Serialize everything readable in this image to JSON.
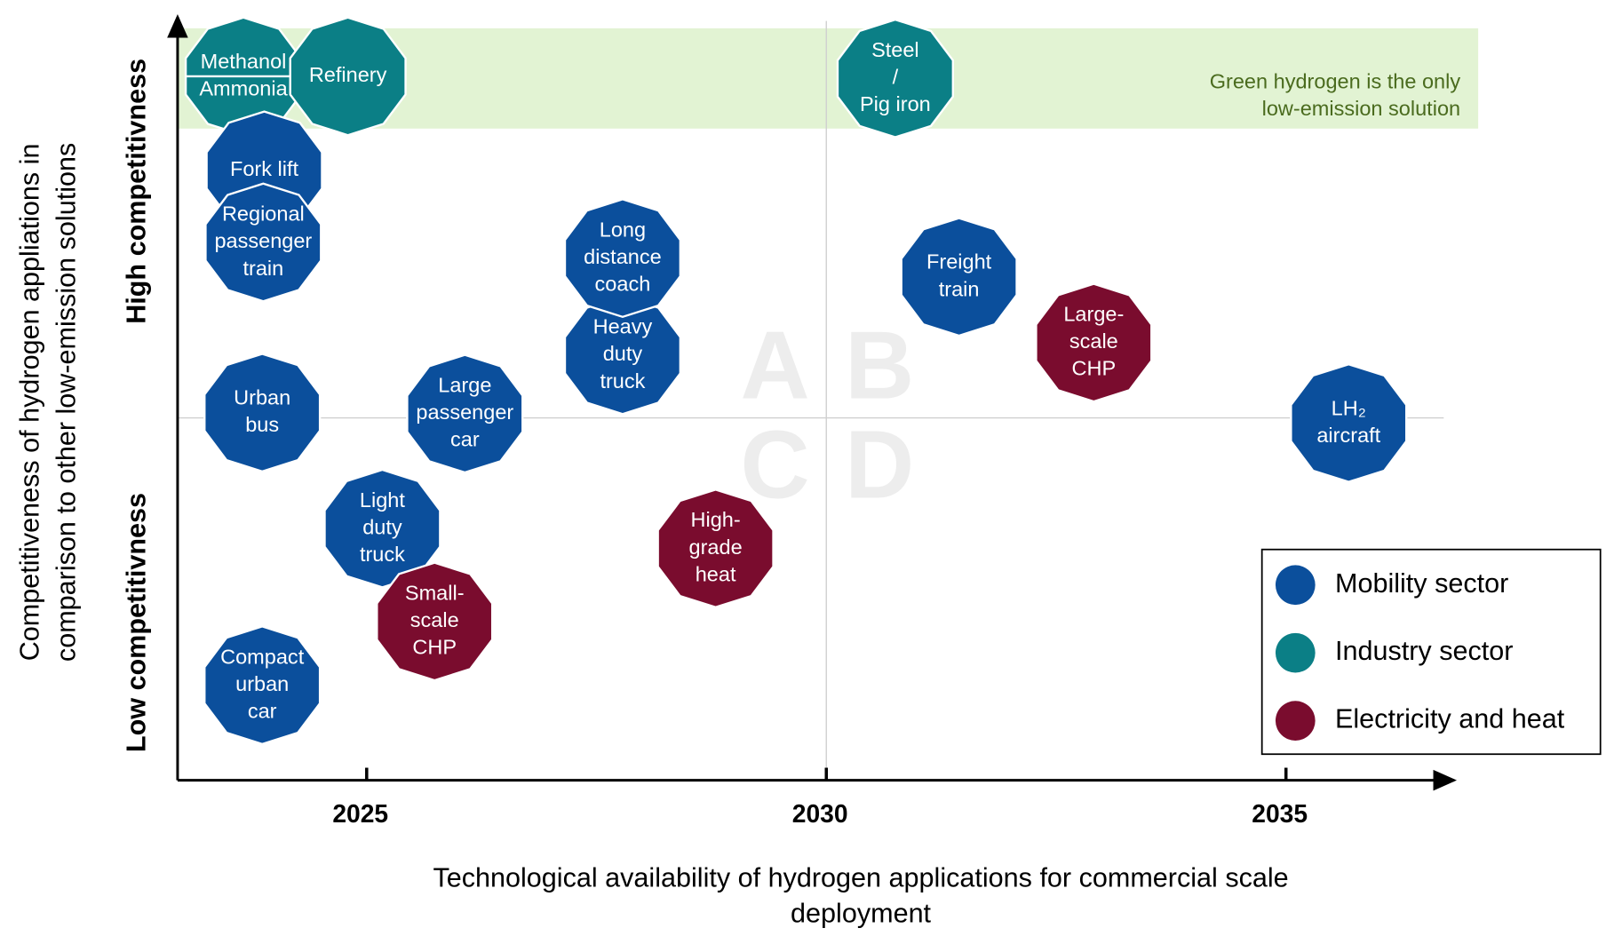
{
  "axes": {
    "y_title": [
      "Competitiveness of hydrogen appliations in",
      "comparison to other low-emission solutions"
    ],
    "y_high": "High competitivness",
    "y_low": "Low competitivness",
    "x_title": [
      "Technological availability of hydrogen applications for commercial scale",
      "deployment"
    ],
    "x_ticks": [
      "2025",
      "2030",
      "2035"
    ]
  },
  "band": {
    "lines": [
      "Green hydrogen is the only",
      "low-emission solution"
    ],
    "color": "#e2f3d3"
  },
  "quadrants": [
    "A",
    "B",
    "C",
    "D"
  ],
  "nodes": [
    {
      "lines": [
        "Methanol",
        "Ammonia"
      ],
      "color": "#0b7f86"
    },
    {
      "lines": [
        "Refinery"
      ],
      "color": "#0b7f86"
    },
    {
      "lines": [
        "Steel",
        "/",
        "Pig iron"
      ],
      "color": "#0b7f86"
    },
    {
      "lines": [
        "Fork lift"
      ],
      "color": "#0b4f9c"
    },
    {
      "lines": [
        "Regional",
        "passenger",
        "train"
      ],
      "color": "#0b4f9c"
    },
    {
      "lines": [
        "Heavy",
        "duty",
        "truck"
      ],
      "color": "#0b4f9c"
    },
    {
      "lines": [
        "Long",
        "distance",
        "coach"
      ],
      "color": "#0b4f9c"
    },
    {
      "lines": [
        "Freight",
        "train"
      ],
      "color": "#0b4f9c"
    },
    {
      "lines": [
        "Large-",
        "scale",
        "CHP"
      ],
      "color": "#7a0c2e"
    },
    {
      "lines": [
        "Urban",
        "bus"
      ],
      "color": "#0b4f9c"
    },
    {
      "lines": [
        "Large",
        "passenger",
        "car"
      ],
      "color": "#0b4f9c"
    },
    {
      "lines": [
        "LH₂",
        "aircraft"
      ],
      "color": "#0b4f9c"
    },
    {
      "lines": [
        "Light",
        "duty",
        "truck"
      ],
      "color": "#0b4f9c"
    },
    {
      "lines": [
        "Small-",
        "scale",
        "CHP"
      ],
      "color": "#7a0c2e"
    },
    {
      "lines": [
        "High-",
        "grade",
        "heat"
      ],
      "color": "#7a0c2e"
    },
    {
      "lines": [
        "Compact",
        "urban",
        "car"
      ],
      "color": "#0b4f9c"
    }
  ],
  "legend": [
    {
      "label": "Mobility sector",
      "color": "#0b4f9c"
    },
    {
      "label": "Industry sector",
      "color": "#0b7f86"
    },
    {
      "label": "Electricity and heat",
      "color": "#7a0c2e"
    }
  ]
}
